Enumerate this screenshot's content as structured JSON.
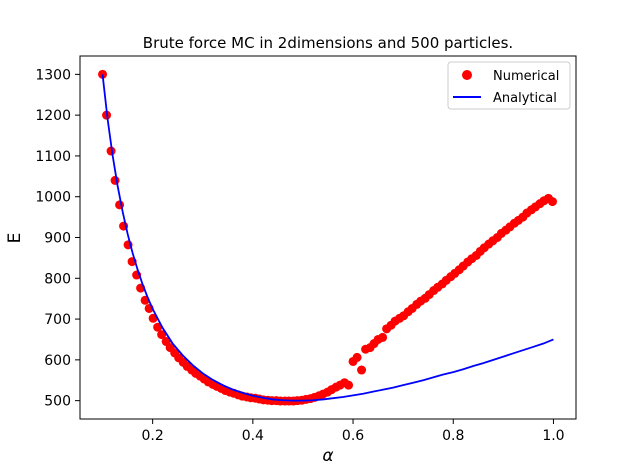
{
  "chart_data": {
    "type": "scatter",
    "title": "Brute force MC in 2dimensions and 500 particles.",
    "xlabel": "α",
    "ylabel": "E",
    "xlim": [
      0.055,
      1.045
    ],
    "ylim": [
      455,
      1345
    ],
    "xticks": [
      0.2,
      0.4,
      0.6,
      0.8,
      1.0
    ],
    "xtick_labels": [
      "0.2",
      "0.4",
      "0.6",
      "0.8",
      "1.0"
    ],
    "yticks": [
      500,
      600,
      700,
      800,
      900,
      1000,
      1100,
      1200,
      1300
    ],
    "ytick_labels": [
      "500",
      "600",
      "700",
      "800",
      "900",
      "1000",
      "1100",
      "1200",
      "1300"
    ],
    "grid": false,
    "legend_position": "top-right",
    "series": [
      {
        "name": "Numerical",
        "kind": "scatter",
        "color": "#ff0000",
        "x": [
          0.1,
          0.108,
          0.117,
          0.125,
          0.134,
          0.142,
          0.151,
          0.159,
          0.168,
          0.176,
          0.185,
          0.193,
          0.201,
          0.21,
          0.218,
          0.227,
          0.235,
          0.244,
          0.252,
          0.261,
          0.269,
          0.278,
          0.286,
          0.295,
          0.303,
          0.311,
          0.32,
          0.328,
          0.337,
          0.345,
          0.354,
          0.362,
          0.371,
          0.379,
          0.388,
          0.396,
          0.405,
          0.413,
          0.421,
          0.43,
          0.438,
          0.447,
          0.455,
          0.464,
          0.472,
          0.481,
          0.489,
          0.498,
          0.506,
          0.515,
          0.523,
          0.532,
          0.54,
          0.549,
          0.557,
          0.566,
          0.574,
          0.583,
          0.591,
          0.6,
          0.608,
          0.617,
          0.625,
          0.634,
          0.642,
          0.65,
          0.659,
          0.667,
          0.676,
          0.684,
          0.693,
          0.701,
          0.71,
          0.718,
          0.727,
          0.735,
          0.744,
          0.752,
          0.761,
          0.769,
          0.778,
          0.786,
          0.795,
          0.803,
          0.812,
          0.82,
          0.829,
          0.837,
          0.846,
          0.854,
          0.862,
          0.871,
          0.879,
          0.888,
          0.896,
          0.905,
          0.913,
          0.922,
          0.93,
          0.939,
          0.947,
          0.956,
          0.964,
          0.973,
          0.981,
          0.99,
          0.998
        ],
        "y": [
          1300,
          1200,
          1112,
          1040,
          980,
          928,
          882,
          841,
          808,
          776,
          746,
          726,
          702,
          680,
          662,
          645,
          630,
          617,
          605,
          594,
          584,
          575,
          567,
          560,
          553,
          546,
          540,
          535,
          530,
          525,
          521,
          518,
          514,
          511,
          509,
          507,
          506,
          504,
          502,
          501,
          500,
          500,
          499,
          499,
          499,
          499,
          500,
          501,
          503,
          505,
          508,
          512,
          516,
          521,
          527,
          533,
          538,
          544,
          538,
          596,
          606,
          575,
          626,
          630,
          640,
          650,
          655,
          676,
          685,
          695,
          702,
          708,
          718,
          726,
          736,
          744,
          751,
          760,
          770,
          778,
          786,
          795,
          804,
          812,
          821,
          830,
          840,
          848,
          856,
          866,
          875,
          884,
          892,
          900,
          910,
          918,
          926,
          935,
          942,
          950,
          960,
          968,
          975,
          983,
          990,
          996,
          988
        ]
      },
      {
        "name": "Analytical",
        "kind": "line",
        "color": "#0000ff",
        "x": [
          0.1,
          0.11,
          0.12,
          0.13,
          0.14,
          0.15,
          0.16,
          0.17,
          0.18,
          0.19,
          0.2,
          0.22,
          0.24,
          0.26,
          0.28,
          0.3,
          0.32,
          0.34,
          0.36,
          0.38,
          0.4,
          0.42,
          0.44,
          0.46,
          0.48,
          0.5,
          0.52,
          0.54,
          0.56,
          0.58,
          0.6,
          0.62,
          0.64,
          0.66,
          0.68,
          0.7,
          0.72,
          0.74,
          0.76,
          0.78,
          0.8,
          0.82,
          0.84,
          0.86,
          0.88,
          0.9,
          0.92,
          0.94,
          0.96,
          0.98,
          1.0
        ],
        "y": [
          1300,
          1191,
          1102,
          1027,
          964,
          909,
          862,
          821,
          785,
          753,
          725,
          678,
          640,
          611,
          587,
          567,
          551,
          538,
          527,
          519,
          512,
          507,
          503,
          501,
          500,
          500,
          501,
          503,
          506,
          509,
          513,
          517,
          522,
          527,
          532,
          538,
          544,
          550,
          557,
          564,
          570,
          577,
          585,
          592,
          600,
          608,
          616,
          624,
          632,
          640,
          650
        ]
      }
    ]
  }
}
